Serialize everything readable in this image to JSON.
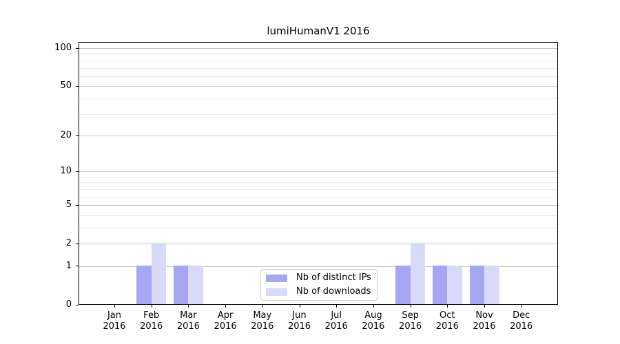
{
  "figure": {
    "title": "lumiHumanV1 2016"
  },
  "chart_data": {
    "type": "bar",
    "title": "lumiHumanV1 2016",
    "categories": [
      "Jan 2016",
      "Feb 2016",
      "Mar 2016",
      "Apr 2016",
      "May 2016",
      "Jun 2016",
      "Jul 2016",
      "Aug 2016",
      "Sep 2016",
      "Oct 2016",
      "Nov 2016",
      "Dec 2016"
    ],
    "series": [
      {
        "name": "Nb of distinct IPs",
        "color": "#a6a6f3",
        "values": [
          0,
          1,
          1,
          0,
          0,
          0,
          0,
          0,
          1,
          1,
          1,
          0
        ]
      },
      {
        "name": "Nb of downloads",
        "color": "#d9d9f9",
        "values": [
          0,
          2,
          1,
          0,
          0,
          0,
          0,
          0,
          2,
          1,
          1,
          0
        ]
      }
    ],
    "xlabel": "",
    "ylabel": "",
    "y_scale": "log1p",
    "ylim": [
      0,
      112
    ],
    "y_major_ticks": [
      0,
      1,
      2,
      5,
      10,
      20,
      50,
      100
    ],
    "y_minor_gridlines": [
      3,
      4,
      6,
      7,
      8,
      9,
      30,
      40,
      60,
      70,
      80,
      90
    ],
    "grid": "horizontal",
    "legend_position": "lower center inside",
    "colors": {
      "major_grid": "#c9c9c9",
      "minor_grid": "#ebebeb",
      "axis": "#000000",
      "text": "#000000",
      "legend_border": "#cccccc",
      "background": "#ffffff"
    }
  }
}
